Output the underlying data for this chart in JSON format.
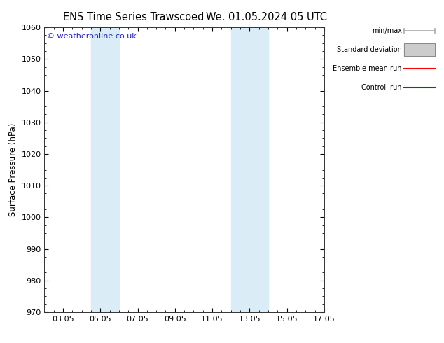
{
  "title_left": "ENS Time Series Trawscoed",
  "title_right": "We. 01.05.2024 05 UTC",
  "ylabel": "Surface Pressure (hPa)",
  "ylim": [
    970,
    1060
  ],
  "yticks": [
    970,
    980,
    990,
    1000,
    1010,
    1020,
    1030,
    1040,
    1050,
    1060
  ],
  "xlim": [
    0.5,
    15.5
  ],
  "xtick_labels": [
    "03.05",
    "05.05",
    "07.05",
    "09.05",
    "11.05",
    "13.05",
    "15.05",
    "17.05"
  ],
  "xtick_positions": [
    1.5,
    3.5,
    5.5,
    7.5,
    9.5,
    11.5,
    13.5,
    15.5
  ],
  "shaded_bands": [
    {
      "xmin": 3.0,
      "xmax": 4.5,
      "color": "#daedf7"
    },
    {
      "xmin": 10.5,
      "xmax": 12.5,
      "color": "#daedf7"
    }
  ],
  "copyright_text": "© weatheronline.co.uk",
  "copyright_color": "#2222cc",
  "background_color": "#ffffff",
  "plot_bg_color": "#ffffff",
  "legend_items": [
    {
      "label": "min/max",
      "color": "#aaaaaa",
      "lw": 1.2,
      "style": "minmax"
    },
    {
      "label": "Standard deviation",
      "color": "#cccccc",
      "lw": 6,
      "style": "band"
    },
    {
      "label": "Ensemble mean run",
      "color": "#ff0000",
      "lw": 1.2,
      "style": "line"
    },
    {
      "label": "Controll run",
      "color": "#006600",
      "lw": 1.2,
      "style": "line"
    }
  ],
  "title_fontsize": 10.5,
  "tick_fontsize": 8,
  "ylabel_fontsize": 8.5,
  "legend_fontsize": 7.0,
  "copyright_fontsize": 8
}
